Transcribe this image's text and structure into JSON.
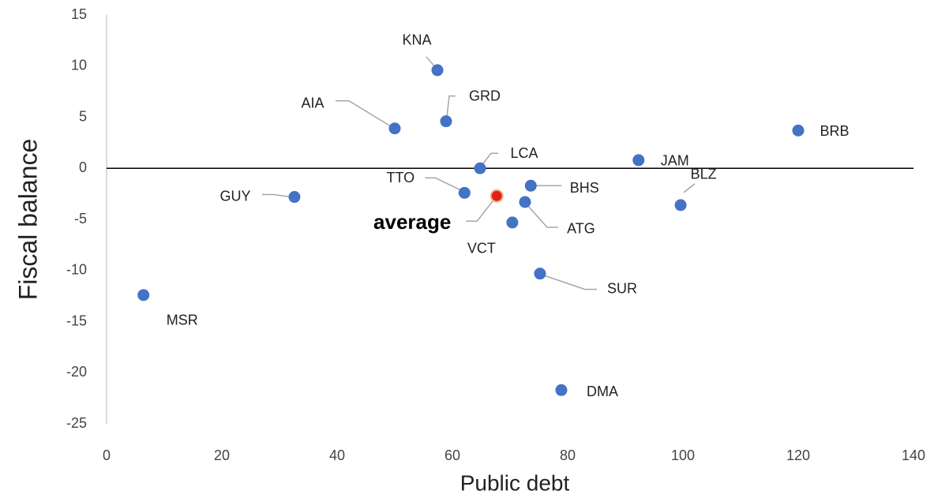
{
  "chart_data": {
    "type": "scatter",
    "xlabel": "Public debt",
    "ylabel": "Fiscal balance",
    "color": "#4472c4",
    "points": [
      {
        "label": "KNA",
        "x": 57.4,
        "y": 9.6
      },
      {
        "label": "AIA",
        "x": 50.0,
        "y": 3.9
      },
      {
        "label": "GRD",
        "x": 58.9,
        "y": 4.6
      },
      {
        "label": "BRB",
        "x": 120.0,
        "y": 3.7
      },
      {
        "label": "JAM",
        "x": 92.3,
        "y": 0.8
      },
      {
        "label": "LCA",
        "x": 64.8,
        "y": 0.0
      },
      {
        "label": "TTO",
        "x": 62.1,
        "y": -2.4
      },
      {
        "label": "BHS",
        "x": 73.6,
        "y": -1.7
      },
      {
        "label": "ATG",
        "x": 72.6,
        "y": -3.3
      },
      {
        "label": "VCT",
        "x": 70.4,
        "y": -5.3
      },
      {
        "label": "BLZ",
        "x": 99.6,
        "y": -3.6
      },
      {
        "label": "GUY",
        "x": 32.6,
        "y": -2.8
      },
      {
        "label": "MSR",
        "x": 6.4,
        "y": -12.4
      },
      {
        "label": "SUR",
        "x": 75.2,
        "y": -10.3
      },
      {
        "label": "DMA",
        "x": 78.9,
        "y": -21.7
      }
    ],
    "average": {
      "label": "average",
      "x": 67.7,
      "y": -2.7,
      "color": "#e0211b"
    },
    "xlim": [
      0,
      140
    ],
    "xticks": [
      0,
      20,
      40,
      60,
      80,
      100,
      120,
      140
    ],
    "ylim": [
      -25,
      15
    ],
    "yticks": [
      -25,
      -20,
      -15,
      -10,
      -5,
      0,
      5,
      10,
      15
    ]
  }
}
